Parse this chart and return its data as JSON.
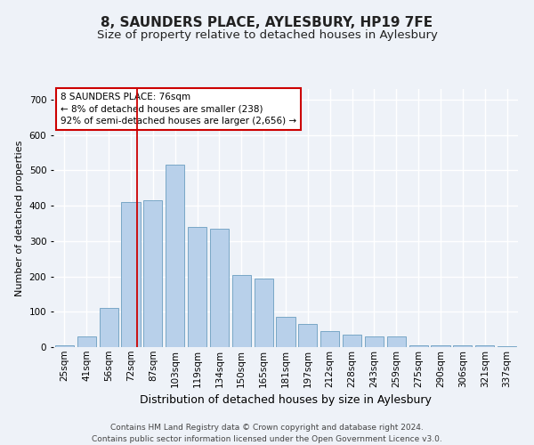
{
  "title": "8, SAUNDERS PLACE, AYLESBURY, HP19 7FE",
  "subtitle": "Size of property relative to detached houses in Aylesbury",
  "xlabel": "Distribution of detached houses by size in Aylesbury",
  "ylabel": "Number of detached properties",
  "categories": [
    "25sqm",
    "41sqm",
    "56sqm",
    "72sqm",
    "87sqm",
    "103sqm",
    "119sqm",
    "134sqm",
    "150sqm",
    "165sqm",
    "181sqm",
    "197sqm",
    "212sqm",
    "228sqm",
    "243sqm",
    "259sqm",
    "275sqm",
    "290sqm",
    "306sqm",
    "321sqm",
    "337sqm"
  ],
  "values": [
    5,
    30,
    110,
    410,
    415,
    515,
    340,
    335,
    205,
    195,
    85,
    65,
    45,
    35,
    30,
    30,
    5,
    5,
    5,
    5,
    2
  ],
  "bar_color": "#b8d0ea",
  "bar_edge_color": "#6a9ec0",
  "annotation_line1": "8 SAUNDERS PLACE: 76sqm",
  "annotation_line2": "← 8% of detached houses are smaller (238)",
  "annotation_line3": "92% of semi-detached houses are larger (2,656) →",
  "redline_color": "#cc0000",
  "redline_x": 3.27,
  "ylim": [
    0,
    730
  ],
  "yticks": [
    0,
    100,
    200,
    300,
    400,
    500,
    600,
    700
  ],
  "background_color": "#eef2f8",
  "grid_color": "#ffffff",
  "footer_text": "Contains HM Land Registry data © Crown copyright and database right 2024.\nContains public sector information licensed under the Open Government Licence v3.0.",
  "title_fontsize": 11,
  "subtitle_fontsize": 9.5,
  "xlabel_fontsize": 9,
  "ylabel_fontsize": 8,
  "tick_fontsize": 7.5,
  "annotation_fontsize": 7.5,
  "footer_fontsize": 6.5
}
